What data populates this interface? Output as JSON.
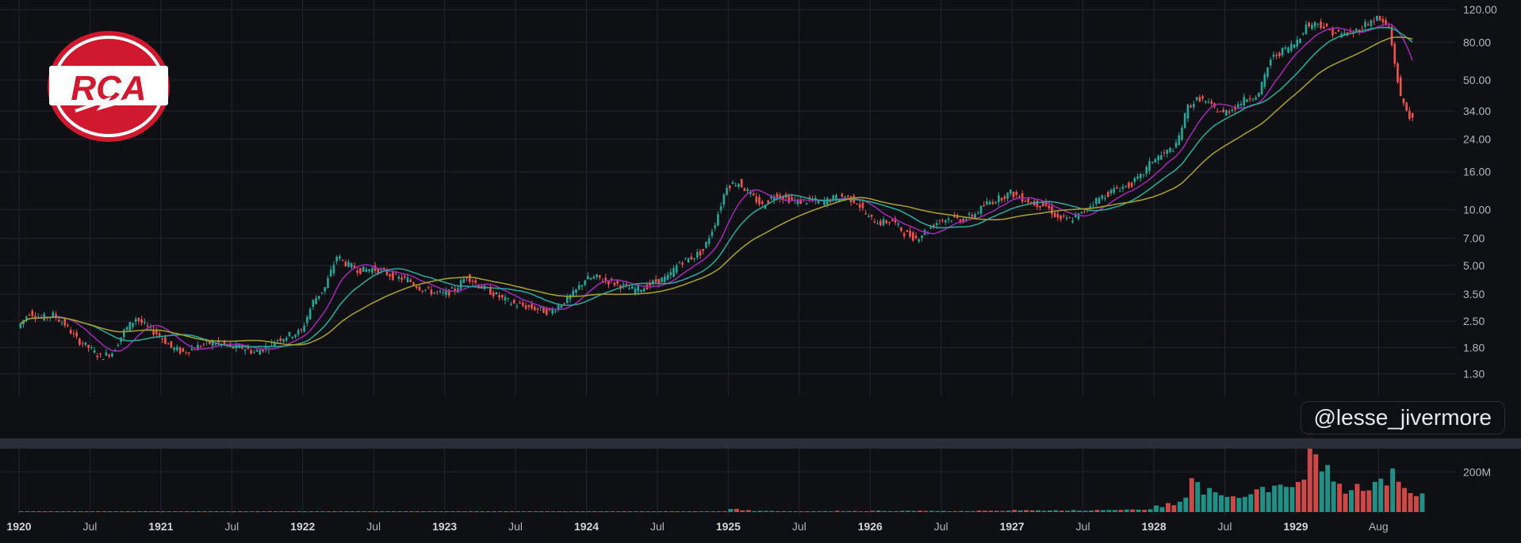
{
  "chart_data": {
    "type": "candlestick",
    "scale": "log",
    "grid": true,
    "price_ticks": [
      "120.00",
      "80.00",
      "50.00",
      "34.00",
      "24.00",
      "16.00",
      "10.00",
      "7.00",
      "5.00",
      "3.50",
      "2.50",
      "1.80",
      "1.30"
    ],
    "price_tick_values": [
      120,
      80,
      50,
      34,
      24,
      16,
      10,
      7,
      5,
      3.5,
      2.5,
      1.8,
      1.3
    ],
    "ylim": [
      1.15,
      125
    ],
    "time_labels": [
      {
        "label": "1920",
        "date": "1920-01",
        "bold": true
      },
      {
        "label": "Jul",
        "date": "1920-07",
        "bold": false
      },
      {
        "label": "1921",
        "date": "1921-01",
        "bold": true
      },
      {
        "label": "Jul",
        "date": "1921-07",
        "bold": false
      },
      {
        "label": "1922",
        "date": "1922-01",
        "bold": true
      },
      {
        "label": "Jul",
        "date": "1922-07",
        "bold": false
      },
      {
        "label": "1923",
        "date": "1923-01",
        "bold": true
      },
      {
        "label": "Jul",
        "date": "1923-07",
        "bold": false
      },
      {
        "label": "1924",
        "date": "1924-01",
        "bold": true
      },
      {
        "label": "Jul",
        "date": "1924-07",
        "bold": false
      },
      {
        "label": "1925",
        "date": "1925-01",
        "bold": true
      },
      {
        "label": "Jul",
        "date": "1925-07",
        "bold": false
      },
      {
        "label": "1926",
        "date": "1926-01",
        "bold": true
      },
      {
        "label": "Jul",
        "date": "1926-07",
        "bold": false
      },
      {
        "label": "1927",
        "date": "1927-01",
        "bold": true
      },
      {
        "label": "Jul",
        "date": "1927-07",
        "bold": false
      },
      {
        "label": "1928",
        "date": "1928-01",
        "bold": true
      },
      {
        "label": "Jul",
        "date": "1928-07",
        "bold": false
      },
      {
        "label": "1929",
        "date": "1929-01",
        "bold": true
      },
      {
        "label": "Aug",
        "date": "1929-08",
        "bold": false
      }
    ],
    "close_series": [
      {
        "date": "1920-01",
        "close": 2.3
      },
      {
        "date": "1920-02",
        "close": 2.8
      },
      {
        "date": "1920-03",
        "close": 2.6
      },
      {
        "date": "1920-04",
        "close": 2.7
      },
      {
        "date": "1920-05",
        "close": 2.4
      },
      {
        "date": "1920-06",
        "close": 2.0
      },
      {
        "date": "1920-07",
        "close": 1.8
      },
      {
        "date": "1920-08",
        "close": 1.6
      },
      {
        "date": "1920-09",
        "close": 1.7
      },
      {
        "date": "1920-10",
        "close": 2.2
      },
      {
        "date": "1920-11",
        "close": 2.6
      },
      {
        "date": "1920-12",
        "close": 2.3
      },
      {
        "date": "1921-01",
        "close": 2.1
      },
      {
        "date": "1921-02",
        "close": 1.8
      },
      {
        "date": "1921-03",
        "close": 1.7
      },
      {
        "date": "1921-04",
        "close": 1.8
      },
      {
        "date": "1921-05",
        "close": 1.9
      },
      {
        "date": "1921-06",
        "close": 1.9
      },
      {
        "date": "1921-07",
        "close": 1.8
      },
      {
        "date": "1921-08",
        "close": 1.8
      },
      {
        "date": "1921-09",
        "close": 1.7
      },
      {
        "date": "1921-10",
        "close": 1.8
      },
      {
        "date": "1921-11",
        "close": 2.0
      },
      {
        "date": "1921-12",
        "close": 2.1
      },
      {
        "date": "1922-01",
        "close": 2.2
      },
      {
        "date": "1922-02",
        "close": 3.2
      },
      {
        "date": "1922-03",
        "close": 3.8
      },
      {
        "date": "1922-04",
        "close": 5.6
      },
      {
        "date": "1922-05",
        "close": 5.0
      },
      {
        "date": "1922-06",
        "close": 4.7
      },
      {
        "date": "1922-07",
        "close": 4.8
      },
      {
        "date": "1922-08",
        "close": 4.6
      },
      {
        "date": "1922-09",
        "close": 4.3
      },
      {
        "date": "1922-10",
        "close": 4.2
      },
      {
        "date": "1922-11",
        "close": 3.8
      },
      {
        "date": "1922-12",
        "close": 3.6
      },
      {
        "date": "1923-01",
        "close": 3.5
      },
      {
        "date": "1923-02",
        "close": 3.7
      },
      {
        "date": "1923-03",
        "close": 4.4
      },
      {
        "date": "1923-04",
        "close": 3.9
      },
      {
        "date": "1923-05",
        "close": 3.6
      },
      {
        "date": "1923-06",
        "close": 3.3
      },
      {
        "date": "1923-07",
        "close": 3.1
      },
      {
        "date": "1923-08",
        "close": 3.0
      },
      {
        "date": "1923-09",
        "close": 2.9
      },
      {
        "date": "1923-10",
        "close": 2.8
      },
      {
        "date": "1923-11",
        "close": 3.1
      },
      {
        "date": "1923-12",
        "close": 3.5
      },
      {
        "date": "1924-01",
        "close": 4.2
      },
      {
        "date": "1924-02",
        "close": 4.3
      },
      {
        "date": "1924-03",
        "close": 4.1
      },
      {
        "date": "1924-04",
        "close": 3.9
      },
      {
        "date": "1924-05",
        "close": 3.7
      },
      {
        "date": "1924-06",
        "close": 3.8
      },
      {
        "date": "1924-07",
        "close": 4.1
      },
      {
        "date": "1924-08",
        "close": 4.3
      },
      {
        "date": "1924-09",
        "close": 5.2
      },
      {
        "date": "1924-10",
        "close": 5.5
      },
      {
        "date": "1924-11",
        "close": 6.0
      },
      {
        "date": "1924-12",
        "close": 8.5
      },
      {
        "date": "1925-01",
        "close": 13.5
      },
      {
        "date": "1925-02",
        "close": 14.0
      },
      {
        "date": "1925-03",
        "close": 12.0
      },
      {
        "date": "1925-04",
        "close": 10.5
      },
      {
        "date": "1925-05",
        "close": 12.0
      },
      {
        "date": "1925-06",
        "close": 11.5
      },
      {
        "date": "1925-07",
        "close": 11.0
      },
      {
        "date": "1925-08",
        "close": 11.2
      },
      {
        "date": "1925-09",
        "close": 11.0
      },
      {
        "date": "1925-10",
        "close": 11.5
      },
      {
        "date": "1925-11",
        "close": 11.8
      },
      {
        "date": "1925-12",
        "close": 11.0
      },
      {
        "date": "1926-01",
        "close": 9.0
      },
      {
        "date": "1926-02",
        "close": 8.5
      },
      {
        "date": "1926-03",
        "close": 8.7
      },
      {
        "date": "1926-04",
        "close": 7.5
      },
      {
        "date": "1926-05",
        "close": 7.0
      },
      {
        "date": "1926-06",
        "close": 7.8
      },
      {
        "date": "1926-07",
        "close": 8.8
      },
      {
        "date": "1926-08",
        "close": 9.0
      },
      {
        "date": "1926-09",
        "close": 8.8
      },
      {
        "date": "1926-10",
        "close": 9.5
      },
      {
        "date": "1926-11",
        "close": 10.8
      },
      {
        "date": "1926-12",
        "close": 11.5
      },
      {
        "date": "1927-01",
        "close": 12.3
      },
      {
        "date": "1927-02",
        "close": 11.5
      },
      {
        "date": "1927-03",
        "close": 10.8
      },
      {
        "date": "1927-04",
        "close": 10.5
      },
      {
        "date": "1927-05",
        "close": 9.0
      },
      {
        "date": "1927-06",
        "close": 8.8
      },
      {
        "date": "1927-07",
        "close": 9.5
      },
      {
        "date": "1927-08",
        "close": 11.0
      },
      {
        "date": "1927-09",
        "close": 12.0
      },
      {
        "date": "1927-10",
        "close": 13.0
      },
      {
        "date": "1927-11",
        "close": 13.5
      },
      {
        "date": "1927-12",
        "close": 15.0
      },
      {
        "date": "1928-01",
        "close": 18.5
      },
      {
        "date": "1928-02",
        "close": 20.0
      },
      {
        "date": "1928-03",
        "close": 22.0
      },
      {
        "date": "1928-04",
        "close": 36.0
      },
      {
        "date": "1928-05",
        "close": 40.0
      },
      {
        "date": "1928-06",
        "close": 36.0
      },
      {
        "date": "1928-07",
        "close": 33.0
      },
      {
        "date": "1928-08",
        "close": 36.0
      },
      {
        "date": "1928-09",
        "close": 40.0
      },
      {
        "date": "1928-10",
        "close": 42.0
      },
      {
        "date": "1928-11",
        "close": 65.0
      },
      {
        "date": "1928-12",
        "close": 72.0
      },
      {
        "date": "1929-01",
        "close": 78.0
      },
      {
        "date": "1929-02",
        "close": 98.0
      },
      {
        "date": "1929-03",
        "close": 102.0
      },
      {
        "date": "1929-04",
        "close": 92.0
      },
      {
        "date": "1929-05",
        "close": 88.0
      },
      {
        "date": "1929-06",
        "close": 90.0
      },
      {
        "date": "1929-07",
        "close": 100.0
      },
      {
        "date": "1929-08",
        "close": 108.0
      },
      {
        "date": "1929-09",
        "close": 96.0
      },
      {
        "date": "1929-10",
        "close": 40.0
      },
      {
        "date": "1929-11",
        "close": 30.0
      }
    ],
    "moving_averages": [
      {
        "color": "#9c27b0",
        "period": 3
      },
      {
        "color": "#26a69a",
        "period": 6
      },
      {
        "color": "#a39b2b",
        "period": 12
      }
    ],
    "volume": {
      "tick_label": "200M",
      "tick_value": 200,
      "max": 280,
      "values": [
        0.5,
        0.5,
        0.5,
        0.5,
        0.5,
        0.5,
        0.5,
        0.5,
        0.5,
        0.5,
        0.5,
        0.5,
        0.5,
        0.5,
        0.5,
        0.5,
        0.5,
        0.5,
        0.5,
        0.5,
        0.5,
        0.5,
        0.5,
        0.5,
        1,
        1,
        1,
        1.5,
        1,
        1,
        1,
        1,
        1,
        1,
        1,
        1,
        1,
        1,
        1,
        1,
        1,
        1,
        1,
        1,
        1,
        1,
        1,
        1,
        1,
        1,
        1,
        1,
        1,
        1,
        1,
        1,
        1.5,
        2,
        2,
        3,
        14,
        8,
        6,
        5,
        5,
        4,
        4,
        4,
        4,
        5,
        5,
        4,
        6,
        5,
        5,
        6,
        6,
        5,
        5,
        5,
        5,
        6,
        7,
        7,
        10,
        8,
        8,
        8,
        7,
        8,
        8,
        9,
        10,
        12,
        12,
        14,
        30,
        45,
        60,
        140,
        110,
        90,
        70,
        90,
        110,
        120,
        160,
        150,
        160,
        300,
        200,
        140,
        110,
        120,
        130,
        170,
        190,
        120,
        80
      ]
    }
  },
  "watermark": "@lesse_jivermore",
  "logo": {
    "text": "RCA",
    "colors": {
      "red": "#d0182f",
      "white": "#ffffff"
    }
  },
  "colors": {
    "background": "#0f1014",
    "grid": "#23262f",
    "text": "#b2b5be",
    "up": "#26a69a",
    "down": "#ef5350",
    "separator": "#2a2e39"
  }
}
